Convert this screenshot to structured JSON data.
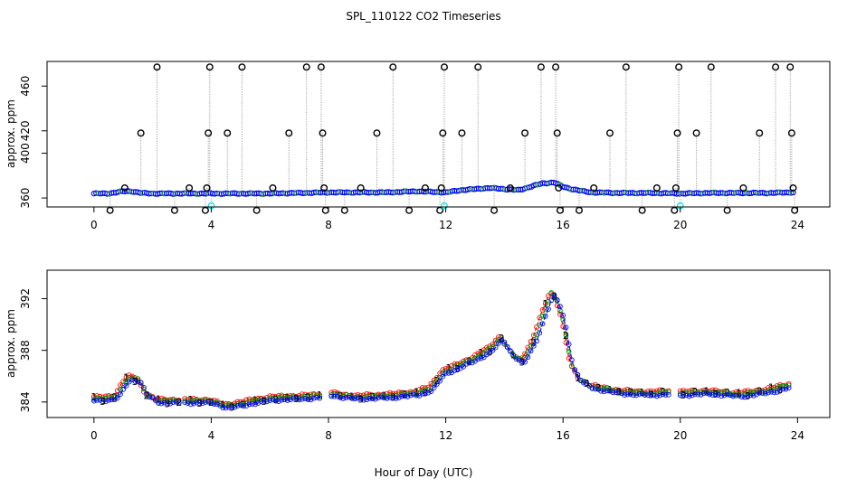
{
  "figure": {
    "title": "SPL_110122  CO2 Timeseries",
    "shared_xlabel": "Hour of Day (UTC)"
  },
  "colors": {
    "axis": "#000000",
    "blue": "#0000ff",
    "green": "#00a000",
    "red": "#ff0000",
    "cyan": "#00e5e5",
    "drop_line": "#a0a0a0"
  },
  "chart_data": [
    {
      "id": "top",
      "type": "scatter",
      "title": "",
      "xlabel": "",
      "ylabel": "approx. ppm",
      "xlim": [
        -1.6,
        25.1
      ],
      "ylim": [
        352,
        482
      ],
      "xticks": [
        0,
        4,
        8,
        12,
        16,
        20,
        24
      ],
      "yticks": [
        360,
        400,
        420,
        460
      ],
      "ytick_labels": [
        "360",
        "400",
        "420",
        "460"
      ],
      "baseline": {
        "x": [
          0,
          0.5,
          1,
          1.3,
          1.6,
          2,
          3,
          4,
          5,
          6,
          7,
          8,
          9,
          10,
          11,
          12,
          12.5,
          13,
          13.5,
          14,
          14.5,
          15,
          15.3,
          15.7,
          16,
          16.3,
          16.7,
          17,
          18,
          19,
          20,
          21,
          22,
          23,
          23.8
        ],
        "y": [
          364,
          364,
          366,
          366,
          364.5,
          364,
          364,
          364,
          364,
          364,
          364.5,
          365,
          365,
          365,
          366,
          365,
          367,
          368,
          369,
          368,
          367,
          371,
          373,
          374,
          370,
          368,
          366,
          365,
          364.5,
          364.5,
          364,
          364.5,
          364.5,
          364.5,
          365
        ]
      },
      "spikes": [
        {
          "x": 0.55,
          "y": 349
        },
        {
          "x": 1.05,
          "y": 369
        },
        {
          "x": 1.6,
          "y": 418
        },
        {
          "x": 2.15,
          "y": 477
        },
        {
          "x": 2.75,
          "y": 349
        },
        {
          "x": 3.25,
          "y": 369
        },
        {
          "x": 3.8,
          "y": 349
        },
        {
          "x": 3.85,
          "y": 369
        },
        {
          "x": 3.9,
          "y": 418
        },
        {
          "x": 3.95,
          "y": 477
        },
        {
          "x": 4.55,
          "y": 418
        },
        {
          "x": 5.05,
          "y": 477
        },
        {
          "x": 5.55,
          "y": 349
        },
        {
          "x": 6.1,
          "y": 369
        },
        {
          "x": 6.65,
          "y": 418
        },
        {
          "x": 7.25,
          "y": 477
        },
        {
          "x": 7.75,
          "y": 477
        },
        {
          "x": 7.8,
          "y": 418
        },
        {
          "x": 7.85,
          "y": 369
        },
        {
          "x": 7.9,
          "y": 349
        },
        {
          "x": 8.55,
          "y": 349
        },
        {
          "x": 9.1,
          "y": 369
        },
        {
          "x": 9.65,
          "y": 418
        },
        {
          "x": 10.2,
          "y": 477
        },
        {
          "x": 10.75,
          "y": 349
        },
        {
          "x": 11.3,
          "y": 369
        },
        {
          "x": 11.8,
          "y": 349
        },
        {
          "x": 11.85,
          "y": 369
        },
        {
          "x": 11.9,
          "y": 418
        },
        {
          "x": 11.95,
          "y": 477
        },
        {
          "x": 12.55,
          "y": 418
        },
        {
          "x": 13.1,
          "y": 477
        },
        {
          "x": 13.65,
          "y": 349
        },
        {
          "x": 14.2,
          "y": 369
        },
        {
          "x": 14.7,
          "y": 418
        },
        {
          "x": 15.25,
          "y": 477
        },
        {
          "x": 15.75,
          "y": 477
        },
        {
          "x": 15.8,
          "y": 418
        },
        {
          "x": 15.85,
          "y": 369
        },
        {
          "x": 15.9,
          "y": 349
        },
        {
          "x": 16.55,
          "y": 349
        },
        {
          "x": 17.05,
          "y": 369
        },
        {
          "x": 17.6,
          "y": 418
        },
        {
          "x": 18.15,
          "y": 477
        },
        {
          "x": 18.7,
          "y": 349
        },
        {
          "x": 19.2,
          "y": 369
        },
        {
          "x": 19.8,
          "y": 349
        },
        {
          "x": 19.85,
          "y": 369
        },
        {
          "x": 19.9,
          "y": 418
        },
        {
          "x": 19.95,
          "y": 477
        },
        {
          "x": 20.55,
          "y": 418
        },
        {
          "x": 21.05,
          "y": 477
        },
        {
          "x": 21.6,
          "y": 349
        },
        {
          "x": 22.15,
          "y": 369
        },
        {
          "x": 22.7,
          "y": 418
        },
        {
          "x": 23.25,
          "y": 477
        },
        {
          "x": 23.75,
          "y": 477
        },
        {
          "x": 23.8,
          "y": 418
        },
        {
          "x": 23.85,
          "y": 369
        },
        {
          "x": 23.9,
          "y": 349
        }
      ],
      "cyan_points": [
        {
          "x": 4.0,
          "y": 353
        },
        {
          "x": 11.95,
          "y": 353
        },
        {
          "x": 20.0,
          "y": 353
        }
      ]
    },
    {
      "id": "bottom",
      "type": "line",
      "title": "",
      "xlabel": "Hour of Day (UTC)",
      "ylabel": "approx. ppm",
      "xlim": [
        -1.6,
        25.1
      ],
      "ylim": [
        382.8,
        394.2
      ],
      "xticks": [
        0,
        4,
        8,
        12,
        16,
        20,
        24
      ],
      "yticks": [
        384,
        388,
        392
      ],
      "profile": {
        "x": [
          0,
          0.5,
          0.8,
          1.0,
          1.2,
          1.5,
          1.8,
          2.2,
          3,
          4,
          4.5,
          5,
          6,
          7,
          7.7,
          8,
          8.5,
          9,
          10,
          11,
          11.5,
          11.9,
          12,
          12.5,
          13,
          13.5,
          13.9,
          14.2,
          14.6,
          15,
          15.3,
          15.6,
          15.8,
          16,
          16.3,
          16.6,
          17,
          18,
          19,
          19.7,
          20,
          21,
          22,
          23,
          23.7
        ],
        "y": [
          384.2,
          384.2,
          384.4,
          385.3,
          385.8,
          385.7,
          384.5,
          384.0,
          384.0,
          384.0,
          383.6,
          383.8,
          384.2,
          384.3,
          384.4,
          384.6,
          384.4,
          384.3,
          384.4,
          384.6,
          385.0,
          386.2,
          386.3,
          386.8,
          387.3,
          388.0,
          388.9,
          387.8,
          387.0,
          388.6,
          390.5,
          392.3,
          391.8,
          390.3,
          386.7,
          385.6,
          385.1,
          384.7,
          384.6,
          384.7,
          384.6,
          384.7,
          384.5,
          384.8,
          385.2
        ]
      },
      "gaps": [
        [
          3.0,
          3.1
        ],
        [
          7.7,
          8.0
        ],
        [
          19.7,
          20.0
        ]
      ],
      "series": [
        {
          "name": "1",
          "color": "red",
          "dx": 0.06,
          "dy": 0.2,
          "label_every": 11,
          "label_phase": 0
        },
        {
          "name": "2",
          "color": "green",
          "dx": 0.0,
          "dy": 0.08,
          "label_every": 11,
          "label_phase": 4
        },
        {
          "name": "3",
          "color": "blue",
          "dx": -0.06,
          "dy": -0.08,
          "label_every": 11,
          "label_phase": 8
        }
      ]
    }
  ]
}
